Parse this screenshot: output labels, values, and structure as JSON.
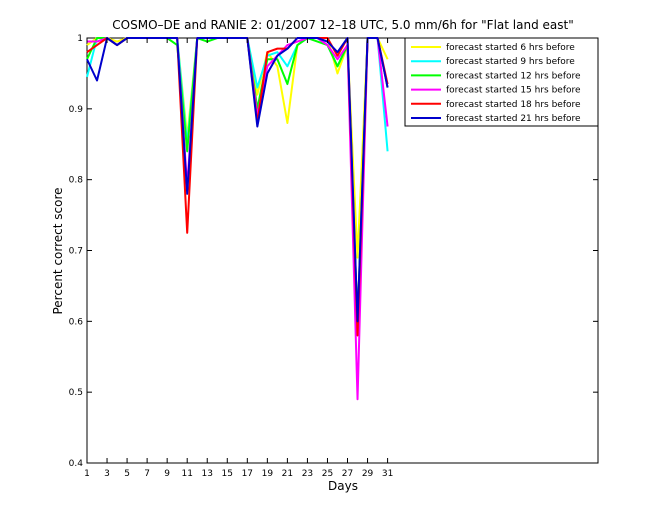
{
  "chart_data": {
    "type": "line",
    "title": "COSMO–DE and RANIE 2: 01/2007 12–18 UTC, 5.0 mm/6h for \"Flat land east\"",
    "xlabel": "Days",
    "ylabel": "Percent correct score",
    "xlim": [
      1,
      52
    ],
    "ylim": [
      0.4,
      1.0
    ],
    "x_ticks": [
      1,
      3,
      5,
      7,
      9,
      11,
      13,
      15,
      17,
      19,
      21,
      23,
      25,
      27,
      29,
      31
    ],
    "y_ticks": [
      0.4,
      0.5,
      0.6,
      0.7,
      0.8,
      0.9,
      1
    ],
    "grid": false,
    "legend_position": "top-right",
    "x": [
      1,
      2,
      3,
      4,
      5,
      6,
      7,
      8,
      9,
      10,
      11,
      12,
      13,
      14,
      15,
      16,
      17,
      18,
      19,
      20,
      21,
      22,
      23,
      24,
      25,
      26,
      27,
      28,
      29,
      30,
      31
    ],
    "series": [
      {
        "name": "forecast started 6 hrs before",
        "color": "#ffff00",
        "values": [
          0.99,
          1.0,
          1.0,
          0.995,
          1.0,
          1.0,
          1.0,
          1.0,
          1.0,
          1.0,
          0.86,
          1.0,
          1.0,
          1.0,
          1.0,
          1.0,
          1.0,
          0.92,
          0.98,
          0.96,
          0.88,
          0.99,
          1.0,
          1.0,
          1.0,
          0.95,
          0.99,
          0.69,
          1.0,
          1.0,
          0.97
        ]
      },
      {
        "name": "forecast started 9 hrs before",
        "color": "#00ffff",
        "values": [
          0.945,
          1.0,
          1.0,
          0.99,
          1.0,
          1.0,
          1.0,
          1.0,
          1.0,
          1.0,
          0.85,
          1.0,
          1.0,
          1.0,
          1.0,
          1.0,
          1.0,
          0.93,
          0.975,
          0.98,
          0.96,
          0.99,
          1.0,
          1.0,
          0.99,
          0.96,
          0.99,
          0.59,
          1.0,
          1.0,
          0.84
        ]
      },
      {
        "name": "forecast started 12 hrs before",
        "color": "#00ff00",
        "values": [
          0.97,
          1.0,
          1.0,
          0.99,
          1.0,
          1.0,
          1.0,
          1.0,
          1.0,
          0.99,
          0.84,
          1.0,
          0.995,
          1.0,
          1.0,
          1.0,
          1.0,
          0.9,
          0.97,
          0.97,
          0.935,
          0.99,
          1.0,
          0.995,
          0.99,
          0.96,
          0.99,
          0.6,
          1.0,
          1.0,
          0.93
        ]
      },
      {
        "name": "forecast started 15 hrs before",
        "color": "#ff00ff",
        "values": [
          0.995,
          0.995,
          1.0,
          0.99,
          1.0,
          1.0,
          1.0,
          1.0,
          1.0,
          1.0,
          0.79,
          1.0,
          1.0,
          1.0,
          1.0,
          1.0,
          1.0,
          0.89,
          0.96,
          0.975,
          0.99,
          0.995,
          1.0,
          1.0,
          0.99,
          0.97,
          0.99,
          0.49,
          1.0,
          1.0,
          0.875
        ]
      },
      {
        "name": "forecast started 18 hrs before",
        "color": "#ff0000",
        "values": [
          0.98,
          0.99,
          1.0,
          0.99,
          1.0,
          1.0,
          1.0,
          1.0,
          1.0,
          1.0,
          0.725,
          1.0,
          1.0,
          1.0,
          1.0,
          1.0,
          1.0,
          0.88,
          0.98,
          0.985,
          0.985,
          1.0,
          1.0,
          1.0,
          1.0,
          0.975,
          1.0,
          0.58,
          1.0,
          1.0,
          0.935
        ]
      },
      {
        "name": "forecast started 21 hrs before",
        "color": "#0000cc",
        "values": [
          0.97,
          0.94,
          1.0,
          0.99,
          1.0,
          1.0,
          1.0,
          1.0,
          1.0,
          1.0,
          0.78,
          1.0,
          1.0,
          1.0,
          1.0,
          1.0,
          1.0,
          0.875,
          0.95,
          0.975,
          0.985,
          1.0,
          1.0,
          1.0,
          0.995,
          0.98,
          1.0,
          0.6,
          1.0,
          1.0,
          0.93
        ]
      }
    ]
  }
}
